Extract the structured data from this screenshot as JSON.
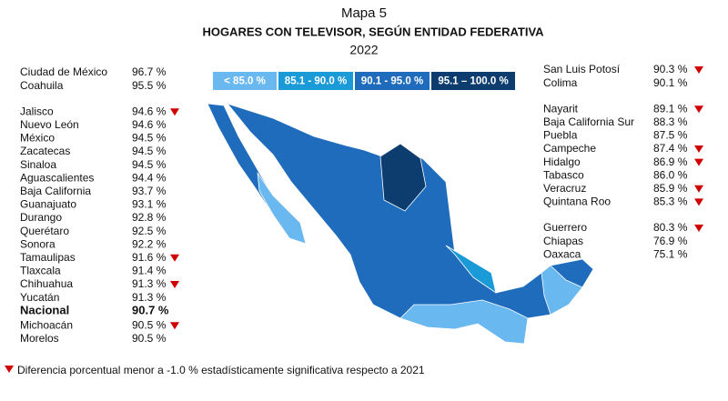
{
  "header": {
    "title": "Mapa 5",
    "subtitle": "HOGARES CON TELEVISOR, SEGÚN ENTIDAD FEDERATIVA",
    "year": "2022"
  },
  "legend": [
    {
      "label": "< 85.0 %",
      "color": "#6ab8f0"
    },
    {
      "label": "85.1 - 90.0 %",
      "color": "#1b9ad8"
    },
    {
      "label": "90.1 - 95.0 %",
      "color": "#1f6cbc"
    },
    {
      "label": "95.1 – 100.0 %",
      "color": "#0c3d6e"
    }
  ],
  "left_groups": [
    [
      {
        "name": "Ciudad de México",
        "value": "96.7 %",
        "decline": false
      },
      {
        "name": "Coahuila",
        "value": "95.5 %",
        "decline": false
      }
    ],
    [
      {
        "name": "Jalisco",
        "value": "94.6 %",
        "decline": true
      },
      {
        "name": "Nuevo León",
        "value": "94.6 %",
        "decline": false
      },
      {
        "name": "México",
        "value": "94.5 %",
        "decline": false
      },
      {
        "name": "Zacatecas",
        "value": "94.5 %",
        "decline": false
      },
      {
        "name": "Sinaloa",
        "value": "94.5 %",
        "decline": false
      },
      {
        "name": "Aguascalientes",
        "value": "94.4 %",
        "decline": false
      },
      {
        "name": "Baja California",
        "value": "93.7 %",
        "decline": false
      },
      {
        "name": "Guanajuato",
        "value": "93.1 %",
        "decline": false
      },
      {
        "name": "Durango",
        "value": "92.8 %",
        "decline": false
      },
      {
        "name": "Querétaro",
        "value": "92.5 %",
        "decline": false
      },
      {
        "name": "Sonora",
        "value": "92.2 %",
        "decline": false
      },
      {
        "name": "Tamaulipas",
        "value": "91.6 %",
        "decline": true
      },
      {
        "name": "Tlaxcala",
        "value": "91.4 %",
        "decline": false
      },
      {
        "name": "Chihuahua",
        "value": "91.3 %",
        "decline": true
      },
      {
        "name": "Yucatán",
        "value": "91.3 %",
        "decline": false
      },
      {
        "name": "Nacional",
        "value": "90.7 %",
        "decline": false,
        "bold": true
      },
      {
        "name": "Michoacán",
        "value": "90.5 %",
        "decline": true
      },
      {
        "name": "Morelos",
        "value": "90.5 %",
        "decline": false
      }
    ]
  ],
  "right_groups": [
    [
      {
        "name": "San Luis Potosí",
        "value": "90.3 %",
        "decline": true
      },
      {
        "name": "Colima",
        "value": "90.1 %",
        "decline": false
      }
    ],
    [
      {
        "name": "Nayarit",
        "value": "89.1 %",
        "decline": true
      },
      {
        "name": "Baja California Sur",
        "value": "88.3 %",
        "decline": false
      },
      {
        "name": "Puebla",
        "value": "87.5 %",
        "decline": false
      },
      {
        "name": "Campeche",
        "value": "87.4 %",
        "decline": true
      },
      {
        "name": "Hidalgo",
        "value": "86.9 %",
        "decline": true
      },
      {
        "name": "Tabasco",
        "value": "86.0 %",
        "decline": false
      },
      {
        "name": "Veracruz",
        "value": "85.9 %",
        "decline": true
      },
      {
        "name": "Quintana Roo",
        "value": "85.3 %",
        "decline": true
      }
    ],
    [
      {
        "name": "Guerrero",
        "value": "80.3 %",
        "decline": true
      },
      {
        "name": "Chiapas",
        "value": "76.9 %",
        "decline": false
      },
      {
        "name": "Oaxaca",
        "value": "75.1 %",
        "decline": false
      }
    ]
  ],
  "footnote": "Diferencia porcentual menor a -1.0 % estadísticamente significativa respecto a 2021"
}
